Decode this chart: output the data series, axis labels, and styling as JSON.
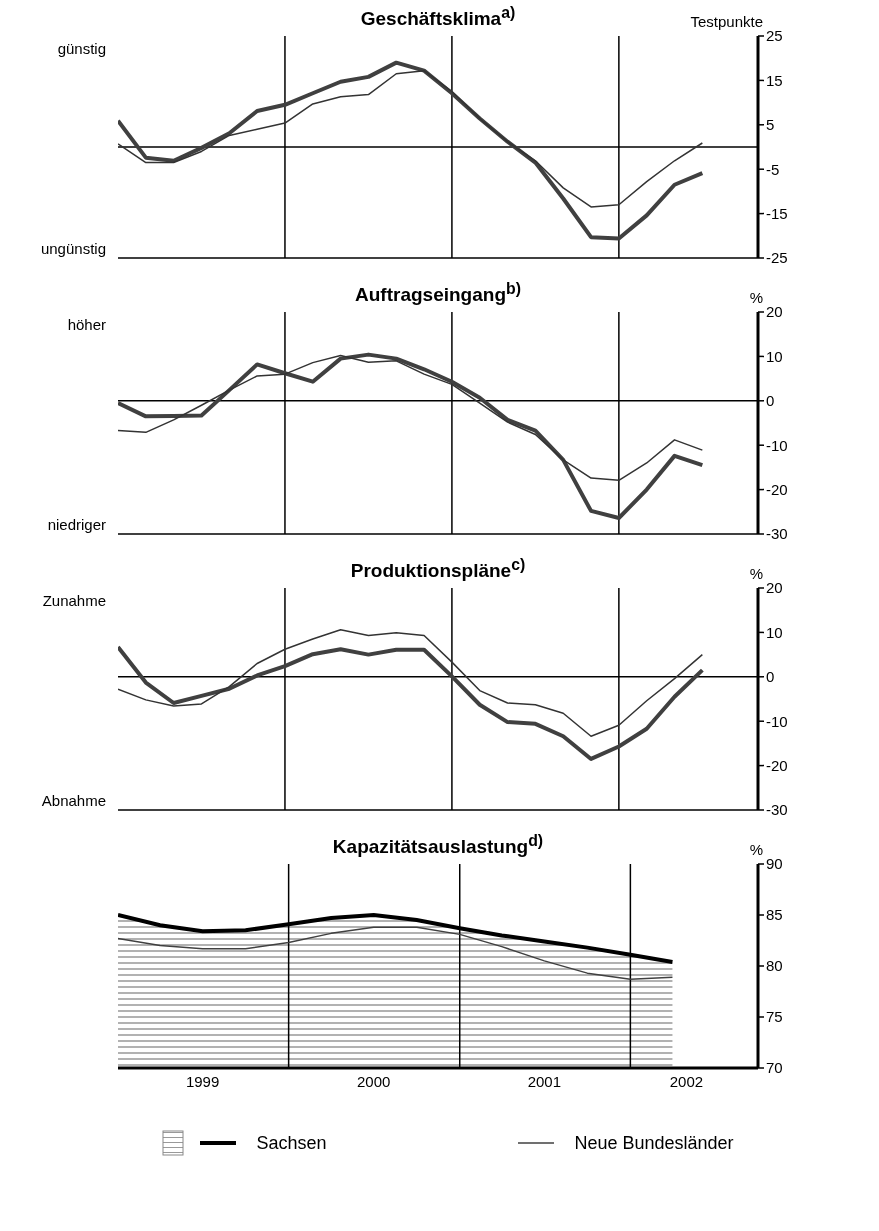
{
  "chart_data": [
    {
      "type": "line",
      "title": "Geschäftsklima$^{a)}$",
      "ylabel": "Testpunkte",
      "annotations": [
        "günstig",
        "ungünstig"
      ],
      "categories": [
        null,
        null,
        null,
        null,
        null,
        null,
        null,
        null,
        null,
        null,
        null,
        null,
        null,
        null,
        null,
        null,
        null,
        null,
        null,
        null,
        null,
        null,
        null,
        null
      ],
      "ylim": [
        -25,
        25
      ],
      "yticks": [
        -25,
        -15,
        -5,
        5,
        15,
        25
      ],
      "tick_labels": "y",
      "grid": "x",
      "ref_lines": [
        {
          "axis": "y",
          "value": 0
        }
      ],
      "series": [
        {
          "color": "#404040",
          "values": [
            5.9,
            -2.4,
            -3.1,
            -0.2,
            3.1,
            8.1,
            9.5,
            12.1,
            14.7,
            15.8,
            19.0,
            17.2,
            12.1,
            6.4,
            1.2,
            -3.5,
            -11.6,
            -20.3,
            -20.6,
            -15.4,
            -8.5,
            -5.9,
            null,
            null
          ]
        },
        {
          "color": "#333333",
          "values": [
            0.7,
            -3.5,
            -3.5,
            -1.0,
            2.6,
            4.0,
            5.4,
            9.7,
            11.3,
            11.8,
            16.5,
            17.2,
            12.5,
            6.4,
            1.2,
            -3.1,
            -9.2,
            -13.5,
            -13.0,
            -7.8,
            -3.1,
            0.9,
            null,
            null
          ]
        }
      ]
    },
    {
      "type": "line",
      "title": "Auftragseingang$^{b)}$",
      "ylabel": "%",
      "annotations": [
        "höher",
        "niedriger"
      ],
      "categories": [
        null,
        null,
        null,
        null,
        null,
        null,
        null,
        null,
        null,
        null,
        null,
        null,
        null,
        null,
        null,
        null,
        null,
        null,
        null,
        null,
        null,
        null,
        null,
        null
      ],
      "ylim": [
        -30,
        20
      ],
      "yticks": [
        -30,
        -20,
        -10,
        0,
        10,
        20
      ],
      "tick_labels": "y",
      "grid": "x",
      "ref_lines": [
        {
          "axis": "y",
          "value": 0
        }
      ],
      "series": [
        {
          "color": "#404040",
          "values": [
            -0.5,
            -3.5,
            -3.4,
            -3.3,
            2.4,
            8.2,
            6.2,
            4.3,
            9.5,
            10.4,
            9.5,
            7.1,
            4.3,
            0.7,
            -4.3,
            -6.7,
            -13.3,
            -24.8,
            -26.4,
            -20.0,
            -12.4,
            -14.5,
            null,
            null
          ]
        },
        {
          "color": "#333333",
          "values": [
            -6.7,
            -7.1,
            -4.3,
            -1.0,
            2.4,
            5.6,
            6.0,
            8.6,
            10.2,
            8.7,
            9.0,
            6.0,
            3.7,
            -0.5,
            -4.8,
            -7.6,
            -13.3,
            -17.4,
            -17.9,
            -14.0,
            -8.8,
            -11.1,
            null,
            null
          ]
        }
      ]
    },
    {
      "type": "line",
      "title": "Produktionspläne$^{c)}$",
      "ylabel": "%",
      "annotations": [
        "Zunahme",
        "Abnahme"
      ],
      "categories": [
        null,
        null,
        null,
        null,
        null,
        null,
        null,
        null,
        null,
        null,
        null,
        null,
        null,
        null,
        null,
        null,
        null,
        null,
        null,
        null,
        null,
        null,
        null,
        null
      ],
      "ylim": [
        -30,
        20
      ],
      "yticks": [
        -30,
        -20,
        -10,
        0,
        10,
        20
      ],
      "tick_labels": "y",
      "grid": "x",
      "ref_lines": [
        {
          "axis": "y",
          "value": 0
        }
      ],
      "series": [
        {
          "color": "#404040",
          "values": [
            6.7,
            -1.3,
            -5.9,
            -4.3,
            -2.7,
            0.3,
            2.4,
            5.1,
            6.2,
            5.0,
            6.1,
            6.1,
            0.1,
            -6.3,
            -10.2,
            -10.6,
            -13.4,
            -18.5,
            -15.7,
            -11.7,
            -4.5,
            1.5,
            null,
            null
          ]
        },
        {
          "color": "#333333",
          "values": [
            -2.8,
            -5.2,
            -6.6,
            -6.1,
            -2.2,
            3.0,
            6.2,
            8.5,
            10.6,
            9.3,
            9.9,
            9.3,
            3.3,
            -3.1,
            -5.9,
            -6.3,
            -8.2,
            -13.4,
            -10.9,
            -5.4,
            -0.4,
            5.0,
            null,
            null
          ]
        }
      ]
    },
    {
      "type": "line",
      "title": "Kapazitätsauslastung$^{d)}$",
      "ylabel": "%",
      "x": [
        "1999-01",
        "1999-04",
        "1999-07",
        "1999-10",
        "2000-01",
        "2000-04",
        "2000-07",
        "2000-10",
        "2001-01",
        "2001-04",
        "2001-07",
        "2001-10",
        "2002-01",
        "2002-04"
      ],
      "xlim": [
        "1999-01",
        "2002-10"
      ],
      "xticks": [
        {
          "value": "1999-07",
          "label": "1999"
        },
        {
          "value": "2000-07",
          "label": "2000"
        },
        {
          "value": "2001-07",
          "label": "2001"
        },
        {
          "value": "2002-05",
          "label": "2002"
        }
      ],
      "ylim": [
        70,
        90
      ],
      "yticks": [
        70,
        75,
        80,
        85,
        90
      ],
      "legend": "bottom",
      "ref_lines": [
        {
          "axis": "x",
          "value": "2000-01"
        },
        {
          "axis": "x",
          "value": "2001-01"
        },
        {
          "axis": "x",
          "value": "2002-01"
        }
      ],
      "series": [
        {
          "name": "Sachsen",
          "type": "area",
          "color": "#000000",
          "values": [
            85.0,
            84.0,
            83.4,
            83.5,
            84.1,
            84.7,
            85.0,
            84.5,
            83.7,
            83.0,
            82.4,
            81.8,
            81.1,
            80.4
          ]
        },
        {
          "name": "Neue Bundesländer",
          "color": "#404040",
          "values": [
            82.7,
            82.0,
            81.7,
            81.7,
            82.3,
            83.2,
            83.8,
            83.8,
            83.1,
            81.9,
            80.5,
            79.3,
            78.7,
            78.9
          ]
        }
      ]
    }
  ]
}
